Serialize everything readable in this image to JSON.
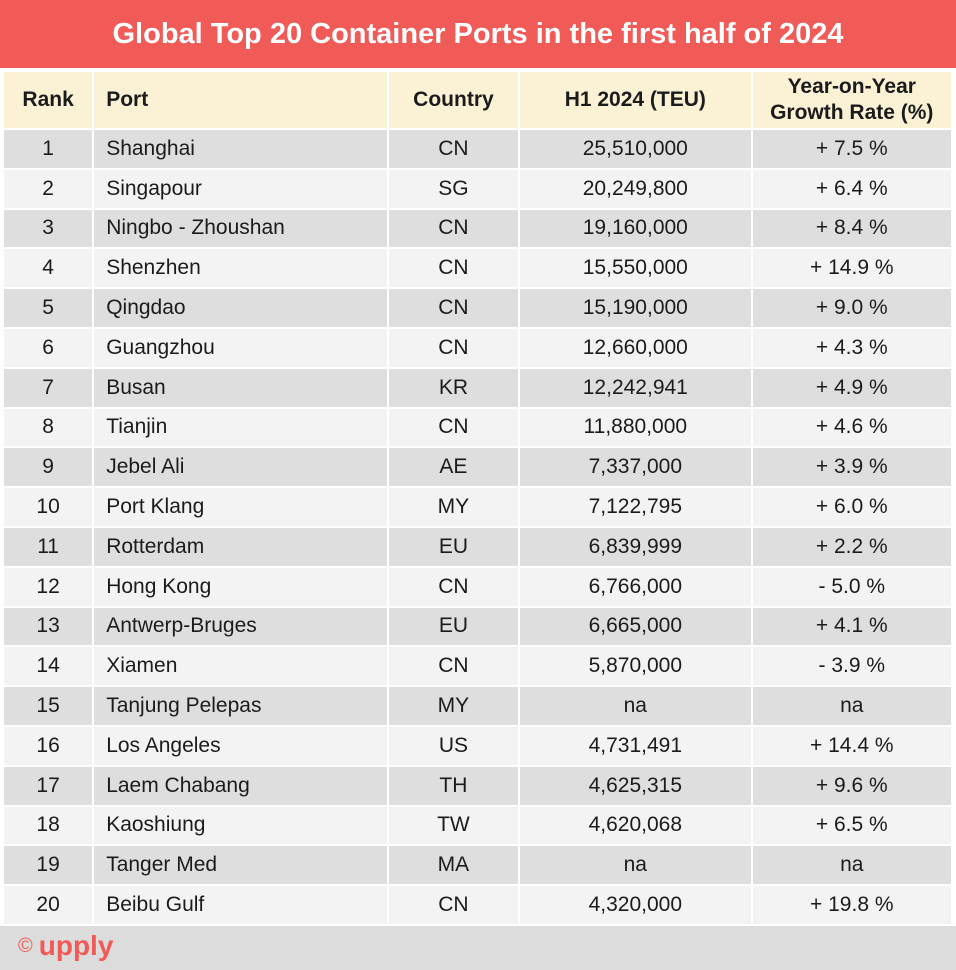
{
  "title": "Global Top 20 Container Ports in the first half of 2024",
  "colors": {
    "title_bg": "#f05a57",
    "header_bg": "#fbf2d6",
    "row_dark": "#dedede",
    "row_light": "#f3f3f3",
    "logo": "#f05a57"
  },
  "columns": [
    "Rank",
    "Port",
    "Country",
    "H1 2024 (TEU)",
    "Year-on-Year Growth Rate (%)"
  ],
  "rows": [
    {
      "rank": "1",
      "port": "Shanghai",
      "country": "CN",
      "teu": "25,510,000",
      "growth": "+ 7.5 %"
    },
    {
      "rank": "2",
      "port": "Singapour",
      "country": "SG",
      "teu": "20,249,800",
      "growth": "+ 6.4 %"
    },
    {
      "rank": "3",
      "port": "Ningbo - Zhoushan",
      "country": "CN",
      "teu": "19,160,000",
      "growth": "+ 8.4 %"
    },
    {
      "rank": "4",
      "port": "Shenzhen",
      "country": "CN",
      "teu": "15,550,000",
      "growth": "+ 14.9 %"
    },
    {
      "rank": "5",
      "port": "Qingdao",
      "country": "CN",
      "teu": "15,190,000",
      "growth": "+ 9.0 %"
    },
    {
      "rank": "6",
      "port": "Guangzhou",
      "country": "CN",
      "teu": "12,660,000",
      "growth": "+ 4.3 %"
    },
    {
      "rank": "7",
      "port": "Busan",
      "country": "KR",
      "teu": "12,242,941",
      "growth": "+ 4.9 %"
    },
    {
      "rank": "8",
      "port": "Tianjin",
      "country": "CN",
      "teu": "11,880,000",
      "growth": "+ 4.6 %"
    },
    {
      "rank": "9",
      "port": "Jebel Ali",
      "country": "AE",
      "teu": "7,337,000",
      "growth": "+ 3.9 %"
    },
    {
      "rank": "10",
      "port": "Port Klang",
      "country": "MY",
      "teu": "7,122,795",
      "growth": "+ 6.0 %"
    },
    {
      "rank": "11",
      "port": "Rotterdam",
      "country": "EU",
      "teu": "6,839,999",
      "growth": "+ 2.2 %"
    },
    {
      "rank": "12",
      "port": "Hong Kong",
      "country": "CN",
      "teu": "6,766,000",
      "growth": "- 5.0 %"
    },
    {
      "rank": "13",
      "port": "Antwerp-Bruges",
      "country": "EU",
      "teu": "6,665,000",
      "growth": "+ 4.1 %"
    },
    {
      "rank": "14",
      "port": "Xiamen",
      "country": "CN",
      "teu": "5,870,000",
      "growth": "- 3.9 %"
    },
    {
      "rank": "15",
      "port": "Tanjung Pelepas",
      "country": "MY",
      "teu": "na",
      "growth": "na"
    },
    {
      "rank": "16",
      "port": "Los Angeles",
      "country": "US",
      "teu": "4,731,491",
      "growth": "+ 14.4 %"
    },
    {
      "rank": "17",
      "port": "Laem Chabang",
      "country": "TH",
      "teu": "4,625,315",
      "growth": "+ 9.6 %"
    },
    {
      "rank": "18",
      "port": "Kaoshiung",
      "country": "TW",
      "teu": "4,620,068",
      "growth": "+ 6.5 %"
    },
    {
      "rank": "19",
      "port": "Tanger Med",
      "country": "MA",
      "teu": "na",
      "growth": "na"
    },
    {
      "rank": "20",
      "port": "Beibu Gulf",
      "country": "CN",
      "teu": "4,320,000",
      "growth": "+ 19.8 %"
    }
  ],
  "footer": {
    "copyright_icon": "copyright-icon",
    "copyright_symbol": "©",
    "brand": "upply"
  },
  "chart_data": {
    "type": "table",
    "title": "Global Top 20 Container Ports in the first half of 2024",
    "columns": [
      "Rank",
      "Port",
      "Country",
      "H1 2024 (TEU)",
      "Year-on-Year Growth Rate (%)"
    ],
    "rows": [
      [
        1,
        "Shanghai",
        "CN",
        25510000,
        7.5
      ],
      [
        2,
        "Singapour",
        "SG",
        20249800,
        6.4
      ],
      [
        3,
        "Ningbo - Zhoushan",
        "CN",
        19160000,
        8.4
      ],
      [
        4,
        "Shenzhen",
        "CN",
        15550000,
        14.9
      ],
      [
        5,
        "Qingdao",
        "CN",
        15190000,
        9.0
      ],
      [
        6,
        "Guangzhou",
        "CN",
        12660000,
        4.3
      ],
      [
        7,
        "Busan",
        "KR",
        12242941,
        4.9
      ],
      [
        8,
        "Tianjin",
        "CN",
        11880000,
        4.6
      ],
      [
        9,
        "Jebel Ali",
        "AE",
        7337000,
        3.9
      ],
      [
        10,
        "Port Klang",
        "MY",
        7122795,
        6.0
      ],
      [
        11,
        "Rotterdam",
        "EU",
        6839999,
        2.2
      ],
      [
        12,
        "Hong Kong",
        "CN",
        6766000,
        -5.0
      ],
      [
        13,
        "Antwerp-Bruges",
        "EU",
        6665000,
        4.1
      ],
      [
        14,
        "Xiamen",
        "CN",
        5870000,
        -3.9
      ],
      [
        15,
        "Tanjung Pelepas",
        "MY",
        null,
        null
      ],
      [
        16,
        "Los Angeles",
        "US",
        4731491,
        14.4
      ],
      [
        17,
        "Laem Chabang",
        "TH",
        4625315,
        9.6
      ],
      [
        18,
        "Kaoshiung",
        "TW",
        4620068,
        6.5
      ],
      [
        19,
        "Tanger Med",
        "MA",
        null,
        null
      ],
      [
        20,
        "Beibu Gulf",
        "CN",
        4320000,
        19.8
      ]
    ]
  }
}
